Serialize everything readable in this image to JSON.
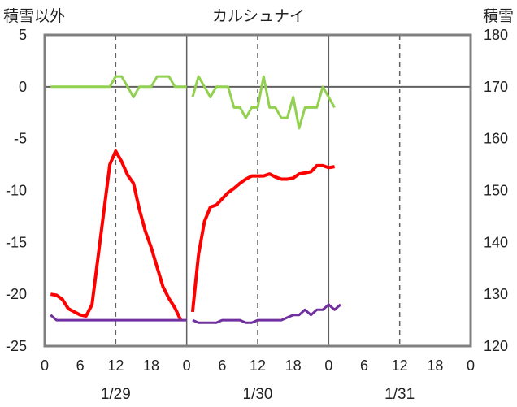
{
  "chart_data": {
    "type": "line",
    "title": "カルシュナイ",
    "ylabel_left": "積雪以外",
    "ylabel_right": "積雪",
    "ylim_left": [
      -25,
      5
    ],
    "ylim_right": [
      120,
      180
    ],
    "yticks_left": [
      "5",
      "0",
      "-5",
      "-10",
      "-15",
      "-20",
      "-25"
    ],
    "yticks_right": [
      "180",
      "170",
      "160",
      "150",
      "140",
      "130",
      "120"
    ],
    "xlim_hours": [
      0,
      72
    ],
    "xticks": [
      "0",
      "6",
      "12",
      "18",
      "0",
      "6",
      "12",
      "18",
      "0",
      "6",
      "12",
      "18",
      "0"
    ],
    "dates": [
      "1/29",
      "1/30",
      "1/31"
    ],
    "grid": "vertical dashed lines at 12:00, solid at midnight",
    "series": [
      {
        "axis": "left",
        "color": "#92d050",
        "segments": [
          [
            [
              1,
              0
            ],
            [
              2,
              0
            ],
            [
              3,
              0
            ],
            [
              4,
              0
            ],
            [
              5,
              0
            ],
            [
              6,
              0
            ],
            [
              7,
              0
            ],
            [
              8,
              0
            ],
            [
              9,
              0
            ],
            [
              10,
              0
            ],
            [
              11,
              0
            ],
            [
              12,
              1
            ],
            [
              13,
              1
            ],
            [
              14,
              0
            ],
            [
              15,
              -1
            ],
            [
              16,
              0
            ],
            [
              17,
              0
            ],
            [
              18,
              0
            ],
            [
              19,
              1
            ],
            [
              20,
              1
            ],
            [
              21,
              1
            ],
            [
              22,
              0
            ],
            [
              23,
              0
            ],
            [
              24,
              0
            ]
          ],
          [
            [
              25,
              -1
            ],
            [
              26,
              1
            ],
            [
              27,
              0
            ],
            [
              28,
              -1
            ],
            [
              29,
              0
            ],
            [
              30,
              0
            ],
            [
              31,
              0
            ],
            [
              32,
              -2
            ],
            [
              33,
              -2
            ],
            [
              34,
              -3
            ],
            [
              35,
              -2
            ],
            [
              36,
              -2
            ],
            [
              37,
              1
            ],
            [
              38,
              -2
            ],
            [
              39,
              -2
            ],
            [
              40,
              -3
            ],
            [
              41,
              -3
            ],
            [
              42,
              -1
            ],
            [
              43,
              -4
            ],
            [
              44,
              -2
            ],
            [
              45,
              -2
            ],
            [
              46,
              -2
            ],
            [
              47,
              0
            ],
            [
              48,
              -1
            ],
            [
              49,
              -2
            ]
          ]
        ]
      },
      {
        "axis": "left",
        "color": "#ff0000",
        "segments": [
          [
            [
              1,
              -20
            ],
            [
              2,
              -20.1
            ],
            [
              3,
              -20.5
            ],
            [
              4,
              -21.4
            ],
            [
              5,
              -21.7
            ],
            [
              6,
              -22
            ],
            [
              7,
              -22.1
            ],
            [
              8,
              -21
            ],
            [
              9,
              -16.5
            ],
            [
              10,
              -12
            ],
            [
              11,
              -7.5
            ],
            [
              12,
              -6.2
            ],
            [
              13,
              -7.2
            ],
            [
              14,
              -8.5
            ],
            [
              15,
              -9.3
            ],
            [
              16,
              -11.8
            ],
            [
              17,
              -13.9
            ],
            [
              18,
              -15.5
            ],
            [
              19,
              -17.4
            ],
            [
              20,
              -19.3
            ],
            [
              21,
              -20.4
            ],
            [
              22,
              -21.3
            ],
            [
              23,
              -22.5
            ]
          ],
          [
            [
              25,
              -21.7
            ],
            [
              26,
              -16.2
            ],
            [
              27,
              -13
            ],
            [
              28,
              -11.6
            ],
            [
              29,
              -11.4
            ],
            [
              30,
              -10.8
            ],
            [
              31,
              -10.2
            ],
            [
              32,
              -9.8
            ],
            [
              33,
              -9.3
            ],
            [
              34,
              -8.9
            ],
            [
              35,
              -8.6
            ],
            [
              36,
              -8.6
            ],
            [
              37,
              -8.6
            ],
            [
              38,
              -8.4
            ],
            [
              39,
              -8.7
            ],
            [
              40,
              -8.9
            ],
            [
              41,
              -8.9
            ],
            [
              42,
              -8.8
            ],
            [
              43,
              -8.4
            ],
            [
              44,
              -8.3
            ],
            [
              45,
              -8.2
            ],
            [
              46,
              -7.6
            ],
            [
              47,
              -7.6
            ],
            [
              48,
              -7.8
            ],
            [
              49,
              -7.7
            ]
          ]
        ]
      },
      {
        "axis": "right",
        "color": "#7030a0",
        "segments": [
          [
            [
              1,
              126
            ],
            [
              2,
              125
            ],
            [
              3,
              125
            ],
            [
              4,
              125
            ],
            [
              5,
              125
            ],
            [
              6,
              125
            ],
            [
              7,
              125
            ],
            [
              8,
              125
            ],
            [
              9,
              125
            ],
            [
              10,
              125
            ],
            [
              11,
              125
            ],
            [
              12,
              125
            ],
            [
              13,
              125
            ],
            [
              14,
              125
            ],
            [
              15,
              125
            ],
            [
              16,
              125
            ],
            [
              17,
              125
            ],
            [
              18,
              125
            ],
            [
              19,
              125
            ],
            [
              20,
              125
            ],
            [
              21,
              125
            ],
            [
              22,
              125
            ],
            [
              23,
              125
            ],
            [
              24,
              125
            ]
          ],
          [
            [
              25,
              125
            ],
            [
              26,
              124.5
            ],
            [
              27,
              124.5
            ],
            [
              28,
              124.5
            ],
            [
              29,
              124.5
            ],
            [
              30,
              125
            ],
            [
              31,
              125
            ],
            [
              32,
              125
            ],
            [
              33,
              125
            ],
            [
              34,
              124.5
            ],
            [
              35,
              124.5
            ],
            [
              36,
              125
            ],
            [
              37,
              125
            ],
            [
              38,
              125
            ],
            [
              39,
              125
            ],
            [
              40,
              125
            ],
            [
              41,
              125.5
            ],
            [
              42,
              126
            ],
            [
              43,
              126
            ],
            [
              44,
              127
            ],
            [
              45,
              126
            ],
            [
              46,
              127
            ],
            [
              47,
              127
            ],
            [
              48,
              128
            ],
            [
              49,
              127
            ],
            [
              50,
              128
            ]
          ]
        ]
      }
    ]
  }
}
